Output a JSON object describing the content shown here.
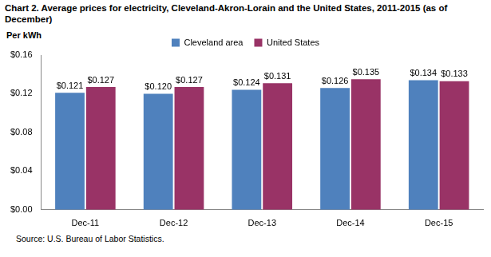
{
  "chart_data": {
    "type": "bar",
    "title": "Chart 2. Average prices for electricity, Cleveland-Akron-Lorain and the United States, 2011-2015 (as of December)",
    "ylabel": "Per kWh",
    "source": "Source: U.S. Bureau of Labor Statistics.",
    "categories": [
      "Dec-11",
      "Dec-12",
      "Dec-13",
      "Dec-14",
      "Dec-15"
    ],
    "series": [
      {
        "name": "Cleveland area",
        "color": "#4f81bd",
        "values": [
          0.121,
          0.12,
          0.124,
          0.126,
          0.134
        ],
        "value_labels": [
          "$0.121",
          "$0.120",
          "$0.124",
          "$0.126",
          "$0.134"
        ]
      },
      {
        "name": "United States",
        "color": "#993366",
        "values": [
          0.127,
          0.127,
          0.131,
          0.135,
          0.133
        ],
        "value_labels": [
          "$0.127",
          "$0.127",
          "$0.131",
          "$0.135",
          "$0.133"
        ]
      }
    ],
    "ylim": [
      0,
      0.16
    ],
    "yticks": [
      {
        "value": 0,
        "label": "$0.00"
      },
      {
        "value": 0.04,
        "label": "$0.04"
      },
      {
        "value": 0.08,
        "label": "$0.08"
      },
      {
        "value": 0.12,
        "label": "$0.12"
      },
      {
        "value": 0.16,
        "label": "$0.16"
      }
    ],
    "grid": false,
    "legend": "top",
    "data_labels": true
  }
}
